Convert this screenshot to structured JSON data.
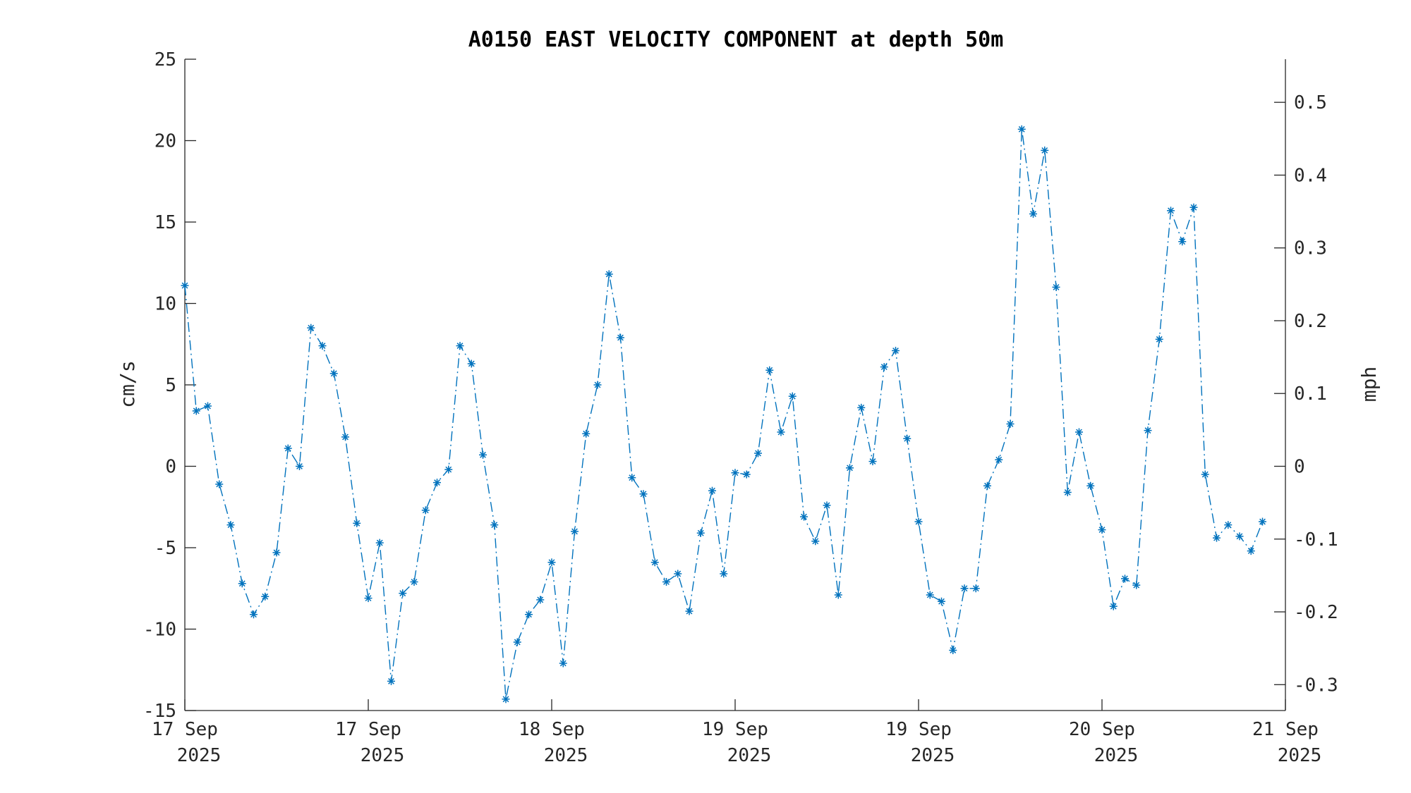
{
  "chart_data": {
    "type": "line",
    "title": "A0150 EAST VELOCITY COMPONENT at depth 50m",
    "ylabel": "cm/s",
    "ylabel_right": "mph",
    "ylim": [
      -15,
      25
    ],
    "y_ticks": [
      "25",
      "20",
      "15",
      "10",
      "5",
      "0",
      "-5",
      "-10",
      "-15"
    ],
    "y_tick_values": [
      25,
      20,
      15,
      10,
      5,
      0,
      -5,
      -10,
      -15
    ],
    "y2_ticks": [
      "0.5",
      "0.4",
      "0.3",
      "0.2",
      "0.1",
      "0",
      "-0.1",
      "-0.2",
      "-0.3"
    ],
    "y2_tick_values": [
      0.5,
      0.4,
      0.3,
      0.2,
      0.1,
      0,
      -0.1,
      -0.2,
      -0.3
    ],
    "x_ticks": [
      {
        "line1": "17 Sep",
        "line2": "2025",
        "pos": 0
      },
      {
        "line1": "17 Sep",
        "line2": "2025",
        "pos": 16
      },
      {
        "line1": "18 Sep",
        "line2": "2025",
        "pos": 32
      },
      {
        "line1": "19 Sep",
        "line2": "2025",
        "pos": 48
      },
      {
        "line1": "19 Sep",
        "line2": "2025",
        "pos": 64
      },
      {
        "line1": "20 Sep",
        "line2": "2025",
        "pos": 80
      },
      {
        "line1": "21 Sep",
        "line2": "2025",
        "pos": 96
      }
    ],
    "x_range": [
      0,
      96
    ],
    "series": [
      {
        "color": "#0072BD",
        "line_style": "dash-dot",
        "marker": "asterisk",
        "values": [
          11.1,
          3.4,
          3.7,
          -1.1,
          -3.6,
          -7.2,
          -9.1,
          -8.0,
          -5.3,
          1.1,
          0.0,
          8.5,
          7.4,
          5.7,
          1.8,
          -3.5,
          -8.1,
          -4.7,
          -13.2,
          -7.8,
          -7.1,
          -2.7,
          -1.0,
          -0.2,
          7.4,
          6.3,
          0.7,
          -3.6,
          -14.3,
          -10.8,
          -9.1,
          -8.2,
          -5.9,
          -12.1,
          -4.0,
          2.0,
          5.0,
          11.8,
          7.9,
          -0.7,
          -1.7,
          -5.9,
          -7.1,
          -6.6,
          -8.9,
          -4.1,
          -1.5,
          -6.6,
          -0.4,
          -0.5,
          0.8,
          5.9,
          2.1,
          4.3,
          -3.1,
          -4.6,
          -2.4,
          -7.9,
          -0.1,
          3.6,
          0.3,
          6.1,
          7.1,
          1.7,
          -3.4,
          -7.9,
          -8.3,
          -11.3,
          -7.5,
          -7.5,
          -1.2,
          0.4,
          2.6,
          20.7,
          15.5,
          19.4,
          11.0,
          -1.6,
          2.1,
          -1.2,
          -3.9,
          -8.6,
          -6.9,
          -7.3,
          2.2,
          7.8,
          15.7,
          13.8,
          15.9,
          -0.5,
          -4.4,
          -3.6,
          -4.3,
          -5.2,
          -3.4
        ]
      }
    ],
    "grid": false,
    "legend": "none"
  }
}
